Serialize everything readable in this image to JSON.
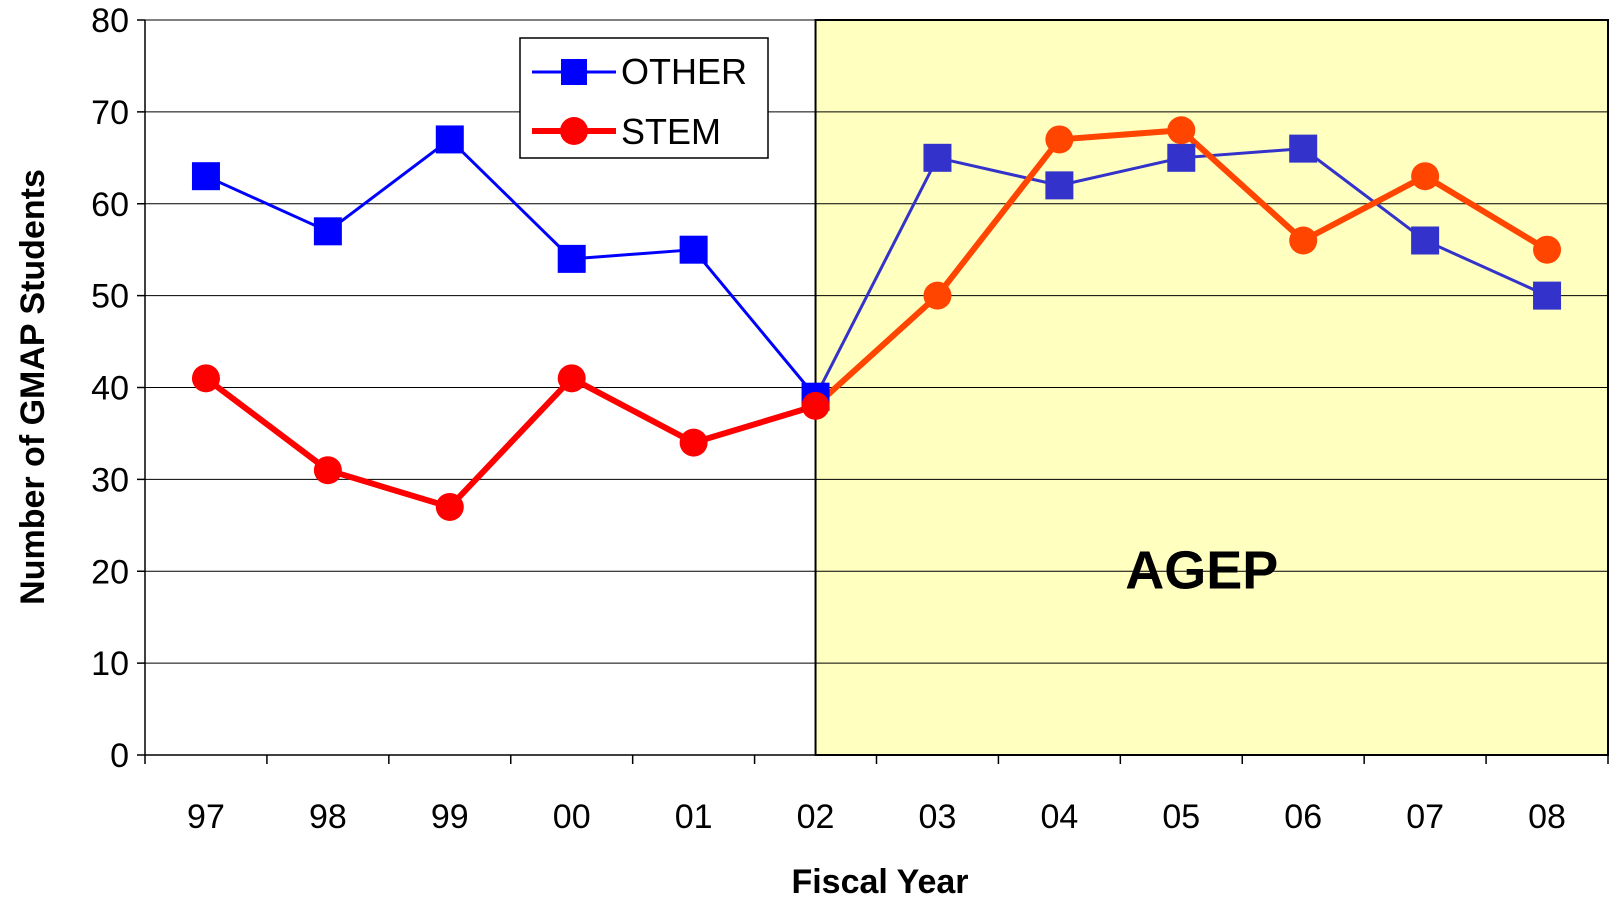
{
  "colors": {
    "other_early": "#0000FF",
    "other_late": "#3333CC",
    "stem_early": "#FF0000",
    "stem_late": "#FF4500",
    "highlight": "#FFFFC0",
    "grid": "#000000"
  },
  "chart_data": {
    "type": "line",
    "xlabel": "Fiscal Year",
    "ylabel": "Number of GMAP Students",
    "categories": [
      "97",
      "98",
      "99",
      "00",
      "01",
      "02",
      "03",
      "04",
      "05",
      "06",
      "07",
      "08"
    ],
    "ylim": [
      0,
      80
    ],
    "yticks": [
      0,
      10,
      20,
      30,
      40,
      50,
      60,
      70,
      80
    ],
    "grid": true,
    "legend_position": "top-left",
    "series": [
      {
        "name": "OTHER",
        "marker": "square",
        "values": [
          63,
          57,
          67,
          54,
          55,
          39,
          65,
          62,
          65,
          66,
          56,
          50
        ]
      },
      {
        "name": "STEM",
        "marker": "circle",
        "values": [
          41,
          31,
          27,
          41,
          34,
          38,
          50,
          67,
          68,
          56,
          63,
          55
        ]
      }
    ],
    "shaded_region": {
      "from_category": "02",
      "to_category": "08",
      "label": "AGEP"
    }
  }
}
